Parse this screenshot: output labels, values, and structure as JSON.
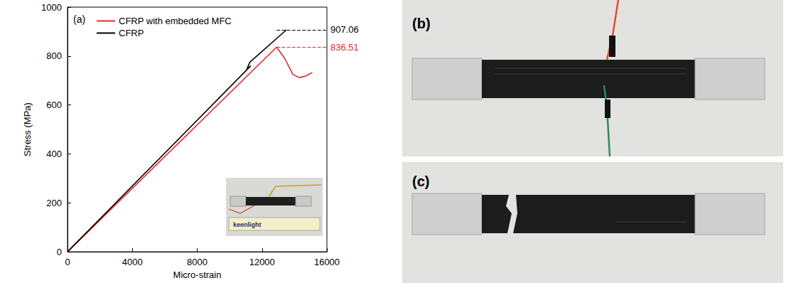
{
  "chart_data": {
    "type": "line",
    "panel_label": "(a)",
    "x_label": "Micro-strain",
    "y_label": "Stress (MPa)",
    "xlim": [
      0,
      16000
    ],
    "xticks": [
      0,
      4000,
      8000,
      12000,
      16000
    ],
    "ylim": [
      0,
      1000
    ],
    "yticks": [
      0,
      200,
      400,
      600,
      800,
      1000
    ],
    "grid": false,
    "legend": "upper left",
    "series": [
      {
        "name": "CFRP with embedded MFC",
        "color": "#e8262a",
        "line_style": "solid",
        "x": [
          0,
          12900,
          13400,
          13900,
          14300,
          14700,
          15100
        ],
        "values": [
          0,
          836.51,
          790,
          725,
          712,
          718,
          733
        ]
      },
      {
        "name": "CFRP",
        "color": "#000000",
        "line_style": "solid",
        "x": [
          0,
          11300,
          11050,
          11250,
          13500
        ],
        "values": [
          0,
          760,
          745,
          775,
          907.06
        ]
      }
    ],
    "annotations": [
      {
        "value": 907.06,
        "x_start": 12900,
        "color": "#000000",
        "line_style": "dashed"
      },
      {
        "value": 836.51,
        "x_start": 12900,
        "color": "#e8262a",
        "line_style": "dashed"
      }
    ]
  },
  "photos": {
    "inset_ruler_text": "keenlight",
    "panels": [
      {
        "label": "(b)"
      },
      {
        "label": "(c)"
      }
    ]
  }
}
